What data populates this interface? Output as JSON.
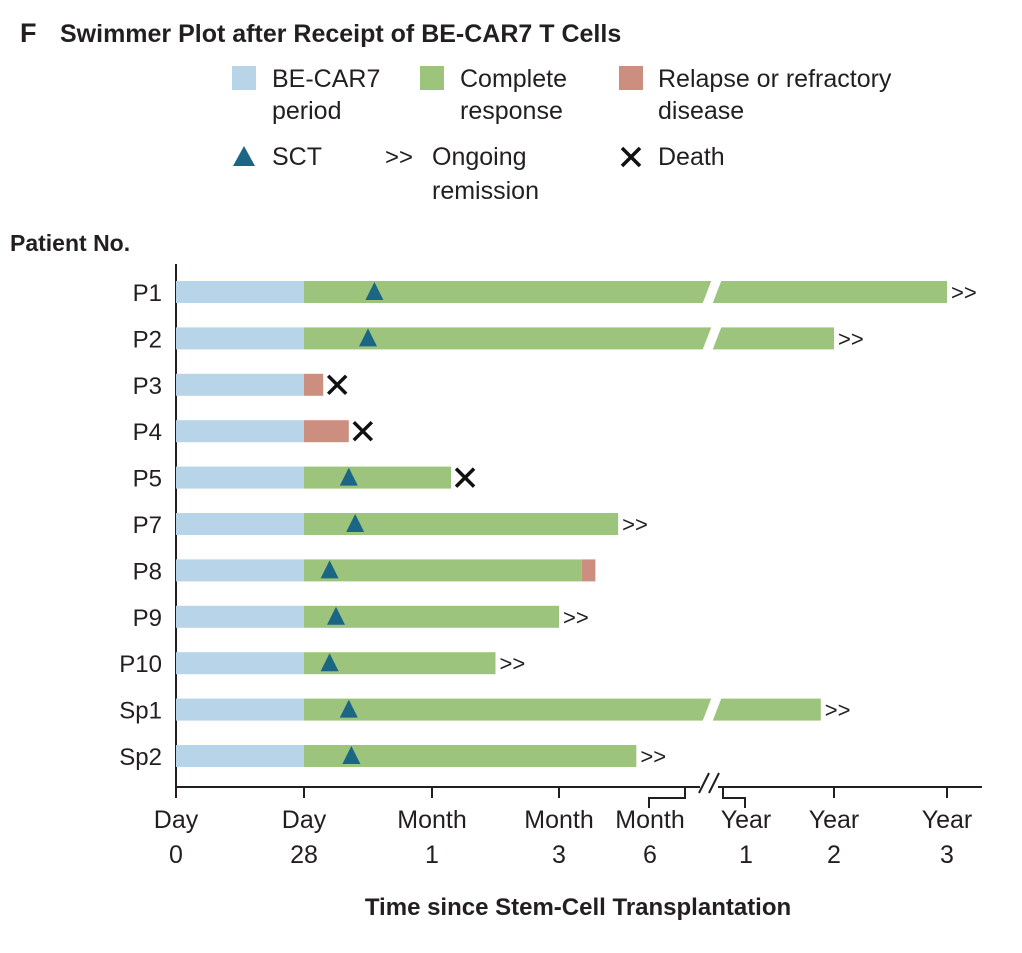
{
  "panel_letter": "F",
  "chart_data": {
    "type": "swimmer",
    "title": "Swimmer Plot after Receipt of BE-CAR7 T Cells",
    "ylabel": "Patient No.",
    "xlabel": "Time since Stem-Cell Transplantation",
    "x_ticks": [
      {
        "line1": "Day",
        "line2": "0"
      },
      {
        "line1": "Day",
        "line2": "28"
      },
      {
        "line1": "Month",
        "line2": "1"
      },
      {
        "line1": "Month",
        "line2": "3"
      },
      {
        "line1": "Month",
        "line2": "6"
      },
      {
        "line1": "Year",
        "line2": "1"
      },
      {
        "line1": "Year",
        "line2": "2"
      },
      {
        "line1": "Year",
        "line2": "3"
      }
    ],
    "axis_note": "Non-linear time axis with a scale break between Month 6 and Year 1; positions are expressed on an ordinal tick scale (0 = Day 0, 1 = Day 28, 2 = Month 1, 3 = Month 3, 4 = Month 6, 5 = Year 1, 6 = Year 2, 7 = Year 3)",
    "legend": [
      {
        "key": "becar7",
        "lines": [
          "BE-CAR7",
          "period"
        ],
        "color": "#b8d4e8",
        "shape": "square"
      },
      {
        "key": "cr",
        "lines": [
          "Complete",
          "response"
        ],
        "color": "#9dc47c",
        "shape": "square"
      },
      {
        "key": "relapse",
        "lines": [
          "Relapse or refractory",
          "disease"
        ],
        "color": "#cc8f7f",
        "shape": "square"
      },
      {
        "key": "sct",
        "lines": [
          "SCT"
        ],
        "color": "#1b6585",
        "shape": "triangle"
      },
      {
        "key": "ongoing",
        "lines": [
          "Ongoing",
          "remission"
        ],
        "symbol": ">>",
        "shape": "text"
      },
      {
        "key": "death",
        "lines": [
          "Death"
        ],
        "symbol": "✕",
        "shape": "cross"
      }
    ],
    "patients": [
      {
        "id": "P1",
        "becar7_end": 1,
        "cr_end": 7.0,
        "relapse_end": null,
        "sct": 1.55,
        "outcome": "ongoing",
        "scale_break": true
      },
      {
        "id": "P2",
        "becar7_end": 1,
        "cr_end": 6.0,
        "relapse_end": null,
        "sct": 1.5,
        "outcome": "ongoing",
        "scale_break": true
      },
      {
        "id": "P3",
        "becar7_end": 1,
        "cr_end": null,
        "relapse_end": 1.15,
        "sct": null,
        "outcome": "death",
        "scale_break": false
      },
      {
        "id": "P4",
        "becar7_end": 1,
        "cr_end": null,
        "relapse_end": 1.35,
        "sct": null,
        "outcome": "death",
        "scale_break": false
      },
      {
        "id": "P5",
        "becar7_end": 1,
        "cr_end": 2.15,
        "relapse_end": null,
        "sct": 1.35,
        "outcome": "death",
        "scale_break": false
      },
      {
        "id": "P7",
        "becar7_end": 1,
        "cr_end": 3.65,
        "relapse_end": null,
        "sct": 1.4,
        "outcome": "ongoing",
        "scale_break": false
      },
      {
        "id": "P8",
        "becar7_end": 1,
        "cr_end": 3.25,
        "relapse_end": 3.4,
        "sct": 1.2,
        "outcome": null,
        "scale_break": false
      },
      {
        "id": "P9",
        "becar7_end": 1,
        "cr_end": 3.0,
        "relapse_end": null,
        "sct": 1.25,
        "outcome": "ongoing",
        "scale_break": false
      },
      {
        "id": "P10",
        "becar7_end": 1,
        "cr_end": 2.5,
        "relapse_end": null,
        "sct": 1.2,
        "outcome": "ongoing",
        "scale_break": false
      },
      {
        "id": "Sp1",
        "becar7_end": 1,
        "cr_end": 5.85,
        "relapse_end": null,
        "sct": 1.35,
        "outcome": "ongoing",
        "scale_break": true
      },
      {
        "id": "Sp2",
        "becar7_end": 1,
        "cr_end": 3.85,
        "relapse_end": null,
        "sct": 1.37,
        "outcome": "ongoing",
        "scale_break": false
      }
    ],
    "ongoing_symbol": ">>",
    "death_symbol": "✕"
  }
}
